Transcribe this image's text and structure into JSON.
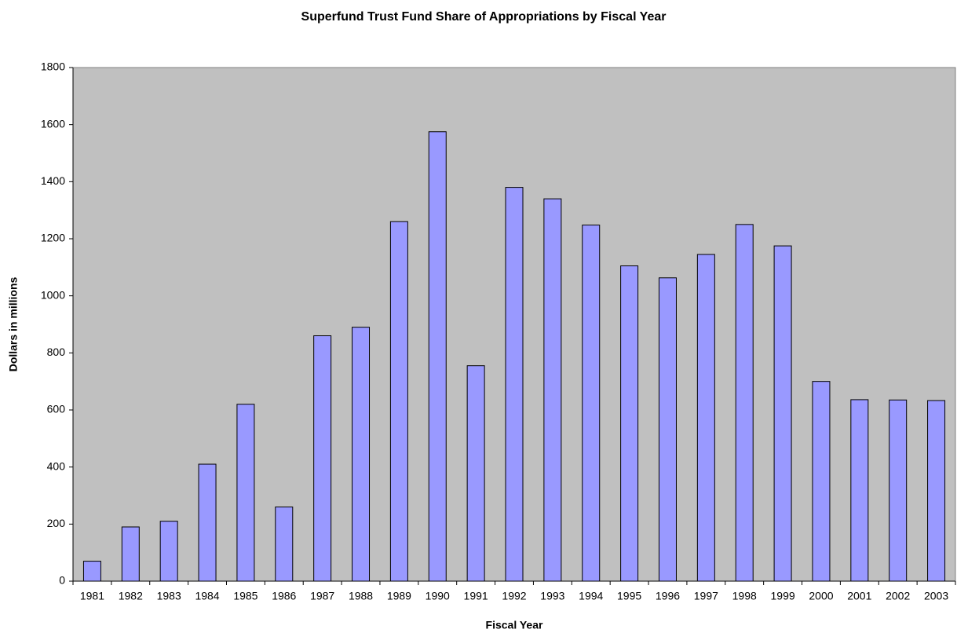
{
  "chart_data": {
    "type": "bar",
    "title": "Superfund Trust Fund Share of Appropriations by Fiscal Year",
    "x_label": "Fiscal Year",
    "y_label": "Dollars in millions",
    "categories": [
      "1981",
      "1982",
      "1983",
      "1984",
      "1985",
      "1986",
      "1987",
      "1988",
      "1989",
      "1990",
      "1991",
      "1992",
      "1993",
      "1994",
      "1995",
      "1996",
      "1997",
      "1998",
      "1999",
      "2000",
      "2001",
      "2002",
      "2003"
    ],
    "values": [
      70,
      190,
      210,
      410,
      620,
      260,
      860,
      890,
      1260,
      1575,
      755,
      1380,
      1340,
      1248,
      1105,
      1063,
      1145,
      1250,
      1175,
      700,
      636,
      635,
      633
    ],
    "color": "#9999ff",
    "ylim": [
      0,
      1800
    ],
    "yticks": [
      0,
      200,
      400,
      600,
      800,
      1000,
      1200,
      1400,
      1600,
      1800
    ],
    "grid": false
  }
}
